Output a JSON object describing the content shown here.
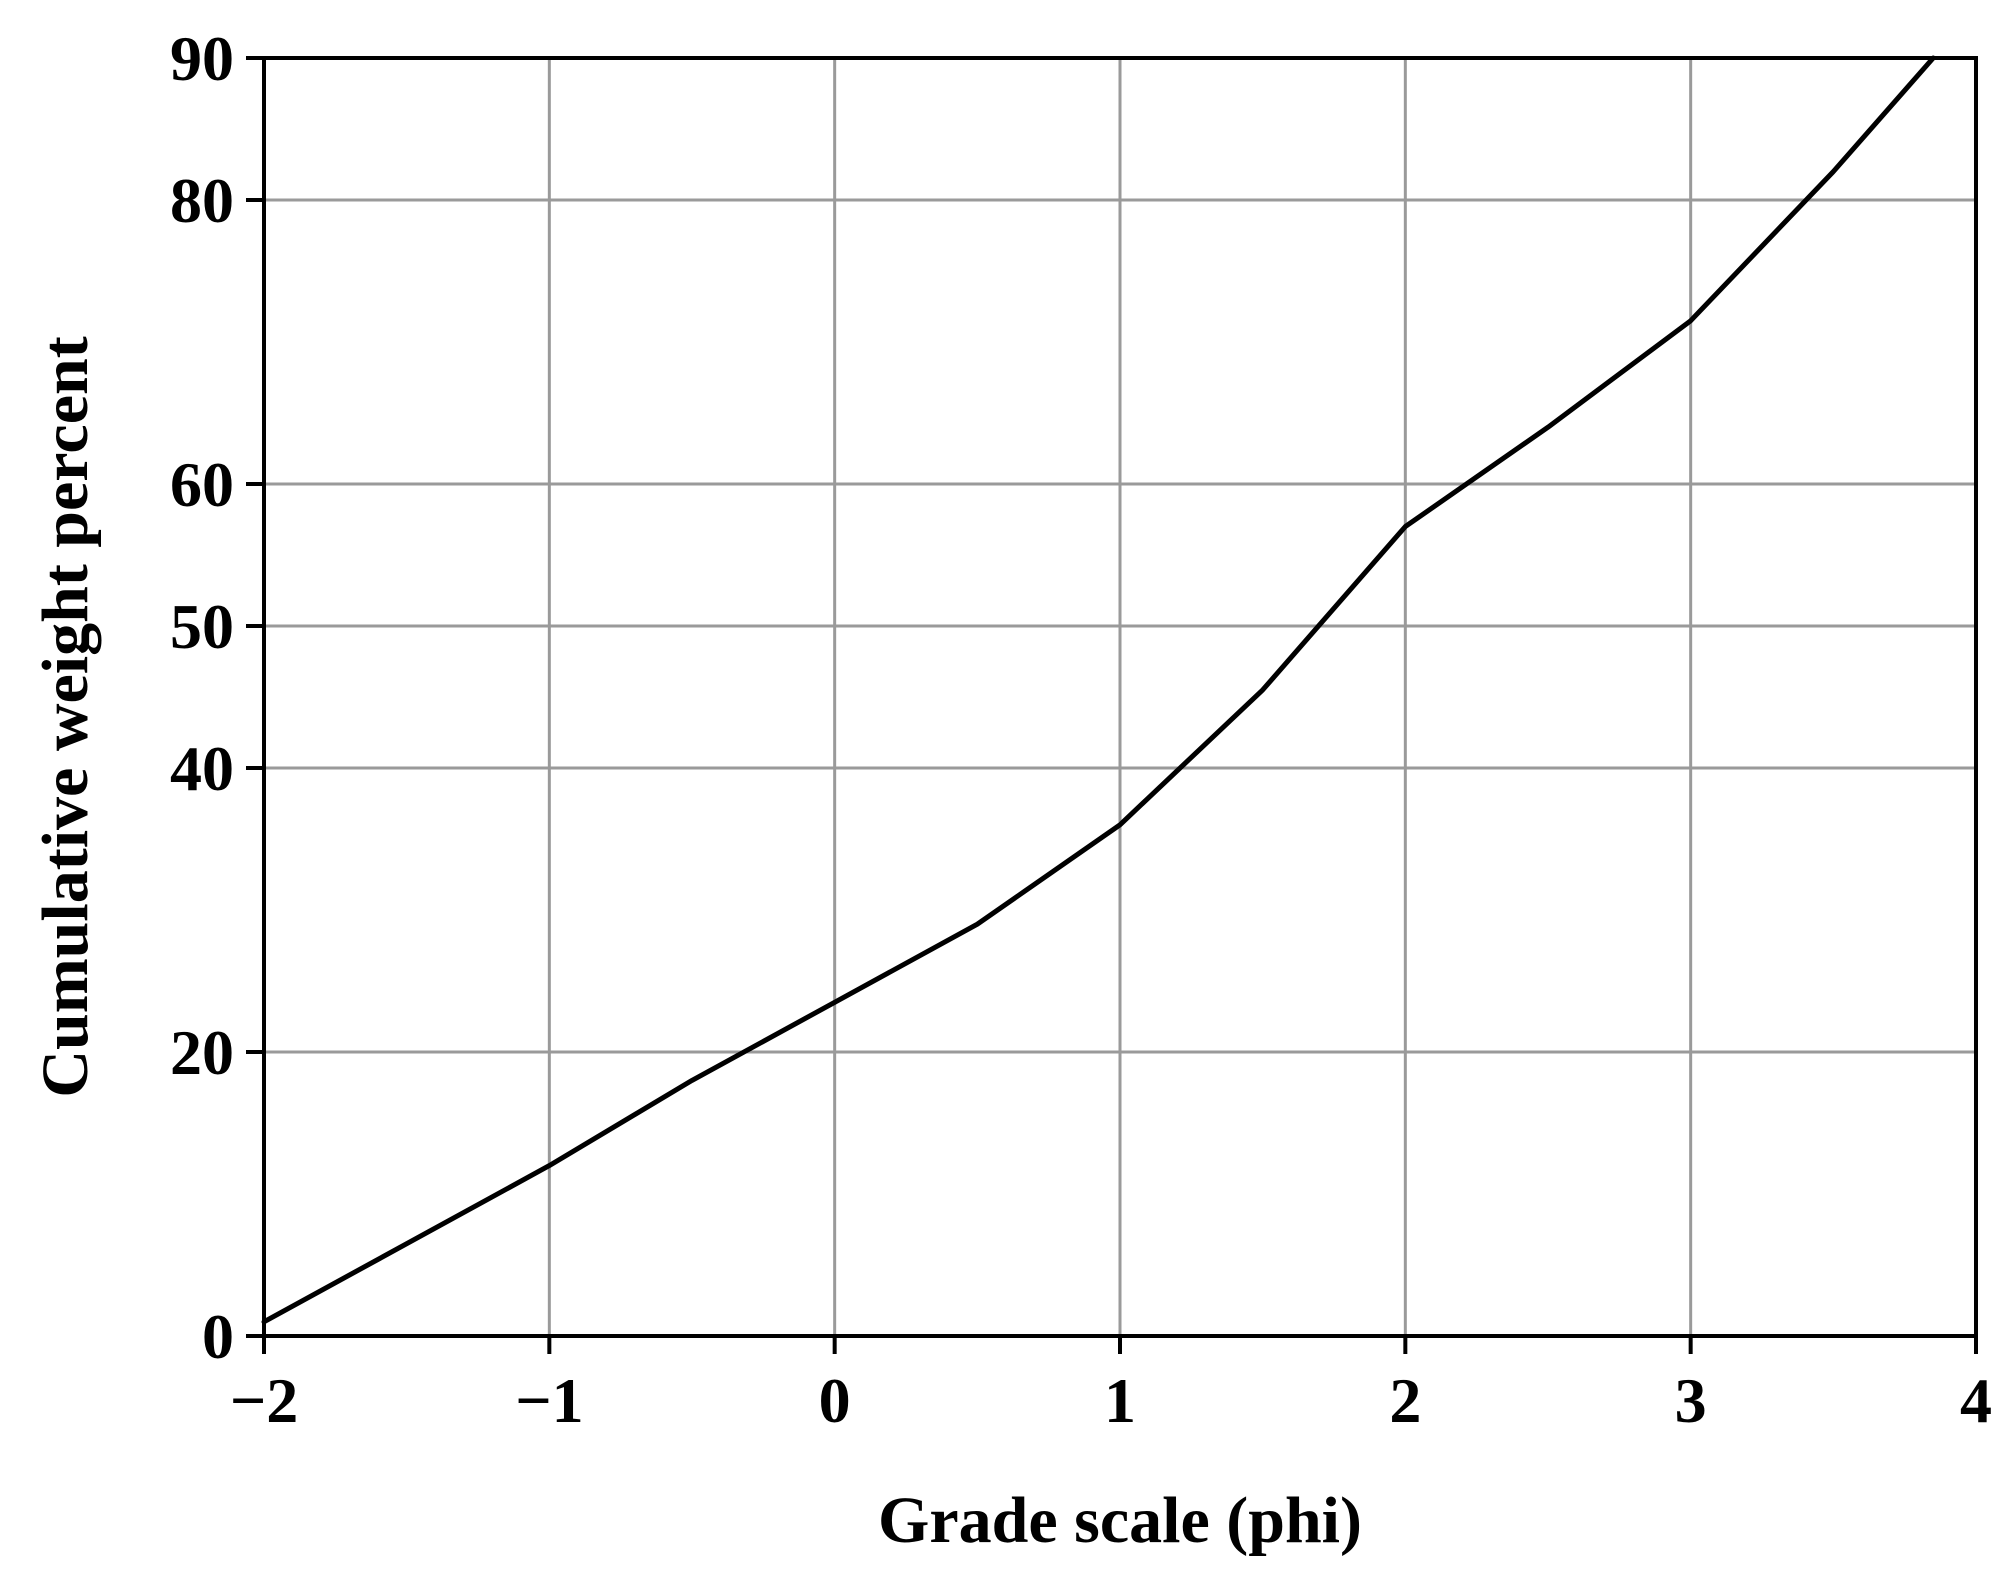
{
  "chart_data": {
    "type": "line",
    "title": "",
    "xlabel": "Grade scale (phi)",
    "ylabel": "Cumulative weight percent",
    "xlim": [
      -2,
      4
    ],
    "ylim": [
      0,
      90
    ],
    "x_ticks": [
      -2,
      -1,
      0,
      1,
      2,
      3,
      4
    ],
    "x_tick_labels": [
      "−2",
      "−1",
      "0",
      "1",
      "2",
      "3",
      "4"
    ],
    "y_ticks": [
      0,
      20,
      40,
      50,
      60,
      80,
      90
    ],
    "y_tick_labels": [
      "0",
      "20",
      "40",
      "50",
      "60",
      "80",
      "90"
    ],
    "grid": true,
    "series": [
      {
        "x": [
          -2,
          -1.5,
          -1,
          -0.5,
          0,
          0.5,
          1,
          1.5,
          2,
          2.5,
          3,
          3.5,
          3.85
        ],
        "y": [
          1,
          6.5,
          12,
          18,
          23.5,
          29,
          36,
          45.5,
          57,
          64,
          71.5,
          82,
          90
        ]
      }
    ],
    "colors": {
      "line": "#000000",
      "grid": "#9a9a9a",
      "axes": "#000000"
    }
  }
}
